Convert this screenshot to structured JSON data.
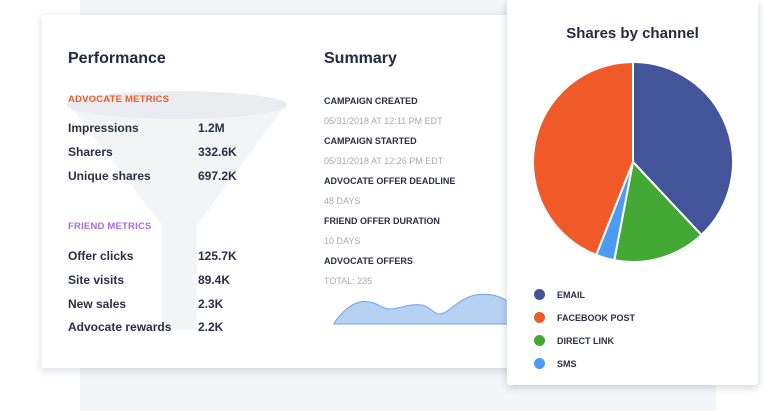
{
  "performance": {
    "title": "Performance",
    "advocate_metrics": {
      "label": "ADVOCATE METRICS",
      "color": "#f05a28",
      "items": [
        {
          "label": "Impressions",
          "value": "1.2M"
        },
        {
          "label": "Sharers",
          "value": "332.6K"
        },
        {
          "label": "Unique shares",
          "value": "697.2K"
        }
      ]
    },
    "friend_metrics": {
      "label": "FRIEND METRICS",
      "color": "#a86ee0",
      "items": [
        {
          "label": "Offer clicks",
          "value": "125.7K"
        },
        {
          "label": "Site visits",
          "value": "89.4K"
        },
        {
          "label": "New sales",
          "value": "2.3K"
        },
        {
          "label": "Advocate rewards",
          "value": "2.2K"
        }
      ]
    }
  },
  "summary": {
    "title": "Summary",
    "items": [
      {
        "label": "CAMPAIGN CREATED",
        "value": "05/31/2018 AT 12:11 PM EDT"
      },
      {
        "label": "CAMPAIGN STARTED",
        "value": "05/31/2018 AT 12:26 PM EDT"
      },
      {
        "label": "ADVOCATE OFFER DEADLINE",
        "value": "48 DAYS"
      },
      {
        "label": "FRIEND OFFER DURATION",
        "value": "10 DAYS"
      },
      {
        "label": "ADVOCATE OFFERS",
        "value": "TOTAL: 235"
      }
    ]
  },
  "chart_data": {
    "type": "pie",
    "title": "Shares by channel",
    "legend_position": "bottom",
    "categories": [
      "EMAIL",
      "FACEBOOK POST",
      "DIRECT LINK",
      "SMS"
    ],
    "values": [
      38,
      44,
      15,
      3
    ],
    "colors": [
      "#44549a",
      "#f05a28",
      "#43a834",
      "#4b9cf0"
    ],
    "slice_order_clockwise_from_top": [
      "EMAIL",
      "DIRECT LINK",
      "SMS",
      "FACEBOOK POST"
    ]
  }
}
